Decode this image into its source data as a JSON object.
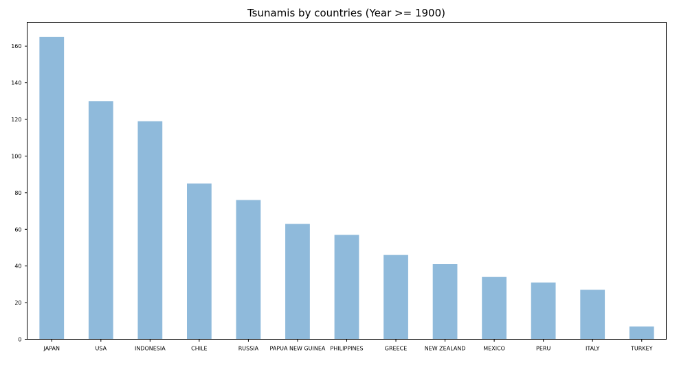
{
  "chart_data": {
    "type": "bar",
    "title": "Tsunamis by countries (Year >= 1900)",
    "xlabel": "",
    "ylabel": "",
    "categories": [
      "JAPAN",
      "USA",
      "INDONESIA",
      "CHILE",
      "RUSSIA",
      "PAPUA NEW GUINEA",
      "PHILIPPINES",
      "GREECE",
      "NEW ZEALAND",
      "MEXICO",
      "PERU",
      "ITALY",
      "TURKEY"
    ],
    "values": [
      165,
      130,
      119,
      85,
      76,
      63,
      57,
      46,
      41,
      34,
      31,
      27,
      7
    ],
    "ylim": [
      0,
      173
    ],
    "yticks": [
      0,
      20,
      40,
      60,
      80,
      100,
      120,
      140,
      160
    ],
    "bar_color": "#8fbadb",
    "grid": false,
    "legend": "none"
  }
}
